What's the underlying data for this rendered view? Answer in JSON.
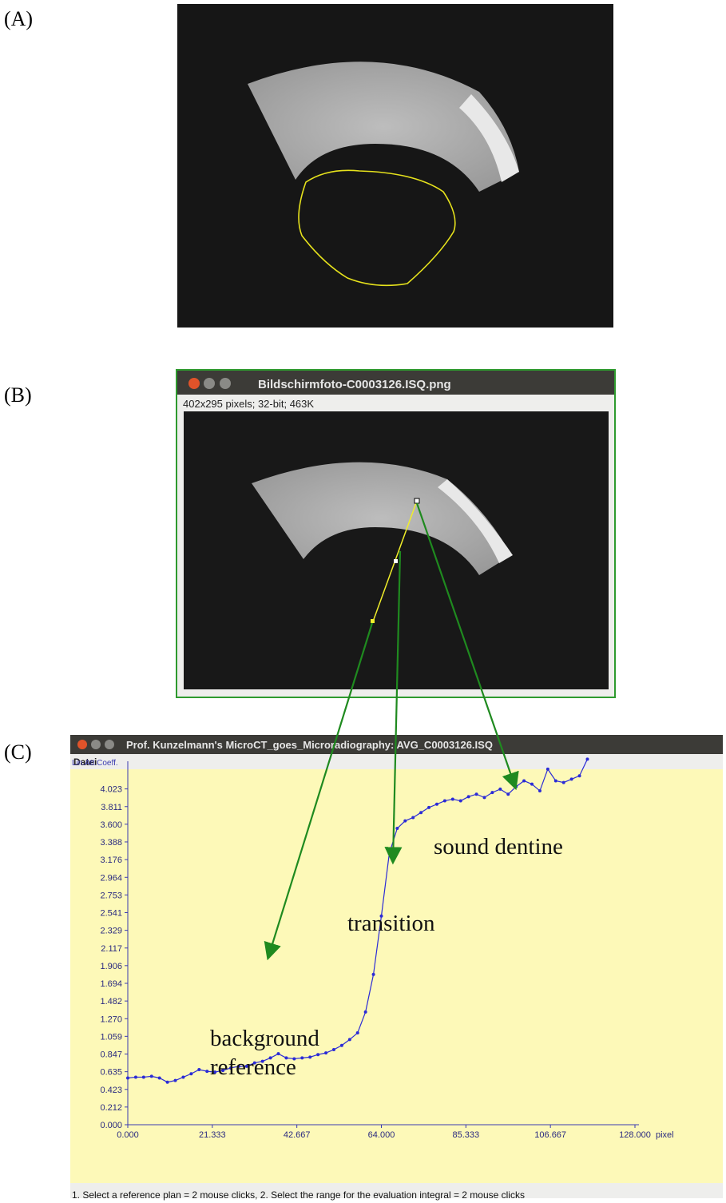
{
  "panel_labels": [
    "(A)",
    "(B)",
    "(C)"
  ],
  "window_b": {
    "title": "Bildschirmfoto-C0003126.ISQ.png",
    "info": "402x295 pixels; 32-bit; 463K"
  },
  "window_c": {
    "title": "Prof. Kunzelmann's MicroCT_goes_Microradiography:  AVG_C0003126.ISQ",
    "menu": "Datei",
    "status": "1. Select a reference plan = 2 mouse clicks, 2. Select the range for the evaluation integral = 2 mouse clicks"
  },
  "chart_data": {
    "type": "line",
    "y_label": "Lin.Att.Coeff.",
    "x_label": "pixel",
    "color": "#2b2bd6",
    "x": [
      0,
      2,
      4,
      6,
      8,
      10,
      12,
      14,
      16,
      18,
      20,
      22,
      24,
      26,
      28,
      30,
      32,
      34,
      36,
      38,
      40,
      42,
      44,
      46,
      48,
      50,
      52,
      54,
      56,
      58,
      60,
      62,
      64,
      66,
      68,
      70,
      72,
      74,
      76,
      78,
      80,
      82,
      84,
      86,
      88,
      90,
      92,
      94,
      96,
      98,
      100,
      102,
      104,
      106,
      108,
      110,
      112,
      114,
      116
    ],
    "values": [
      0.56,
      0.57,
      0.57,
      0.58,
      0.56,
      0.51,
      0.53,
      0.57,
      0.61,
      0.66,
      0.64,
      0.63,
      0.65,
      0.68,
      0.7,
      0.7,
      0.74,
      0.76,
      0.8,
      0.85,
      0.8,
      0.79,
      0.8,
      0.81,
      0.84,
      0.86,
      0.9,
      0.95,
      1.02,
      1.1,
      1.35,
      1.8,
      2.5,
      3.25,
      3.55,
      3.64,
      3.68,
      3.74,
      3.8,
      3.84,
      3.88,
      3.9,
      3.88,
      3.93,
      3.96,
      3.92,
      3.98,
      4.02,
      3.96,
      4.05,
      4.12,
      4.08,
      4.0,
      4.26,
      4.12,
      4.1,
      4.14,
      4.18,
      4.38
    ],
    "xlim": [
      0,
      128
    ],
    "ylim": [
      0,
      4.45
    ],
    "xticks": [
      {
        "value": 0,
        "label": "0.000"
      },
      21.333,
      42.667,
      {
        "value": 64,
        "label": "64.000"
      },
      85.333,
      106.667,
      {
        "value": 128,
        "label": "128.000"
      }
    ],
    "yticks": [
      {
        "value": 0,
        "label": "0.000"
      },
      0.212,
      0.423,
      0.635,
      0.847,
      1.059,
      {
        "value": 1.27,
        "label": "1.270"
      },
      1.482,
      1.694,
      1.906,
      2.117,
      2.329,
      2.541,
      2.753,
      2.964,
      3.176,
      3.388,
      {
        "value": 3.6,
        "label": "3.600"
      },
      3.811,
      4.023
    ],
    "grid": false,
    "annotations": [
      "sound dentine",
      "transition",
      "background reference"
    ]
  }
}
